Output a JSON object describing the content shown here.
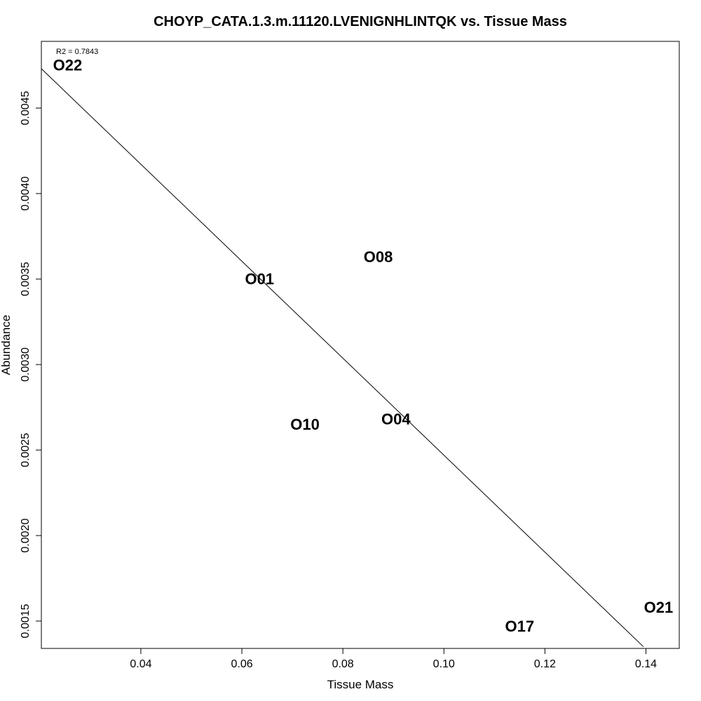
{
  "chart_data": {
    "type": "scatter",
    "title": "CHOYP_CATA.1.3.m.11120.LVENIGNHLINTQK vs. Tissue Mass",
    "xlabel": "Tissue Mass",
    "ylabel": "Abundance",
    "xlim": [
      0.0203,
      0.1466
    ],
    "ylim": [
      0.00134,
      0.00489
    ],
    "x_ticks": [
      0.04,
      0.06,
      0.08,
      0.1,
      0.12,
      0.14
    ],
    "x_tick_labels": [
      "0.04",
      "0.06",
      "0.08",
      "0.10",
      "0.12",
      "0.14"
    ],
    "y_ticks": [
      0.0015,
      0.002,
      0.0025,
      0.003,
      0.0035,
      0.004,
      0.0045
    ],
    "y_tick_labels": [
      "0.0015",
      "0.0020",
      "0.0025",
      "0.0030",
      "0.0035",
      "0.0040",
      "0.0045"
    ],
    "grid": false,
    "points": [
      {
        "label": "O22",
        "x": 0.0255,
        "y": 0.00475
      },
      {
        "label": "O01",
        "x": 0.0635,
        "y": 0.0035
      },
      {
        "label": "O08",
        "x": 0.087,
        "y": 0.00363
      },
      {
        "label": "O10",
        "x": 0.0725,
        "y": 0.00265
      },
      {
        "label": "O04",
        "x": 0.0905,
        "y": 0.00268
      },
      {
        "label": "O17",
        "x": 0.115,
        "y": 0.00147
      },
      {
        "label": "O21",
        "x": 0.1425,
        "y": 0.00158
      }
    ],
    "regression_line": {
      "x": [
        0.0203,
        0.1395
      ],
      "y": [
        0.00473,
        0.00135
      ]
    },
    "annotation": "R2 = 0.7843"
  }
}
